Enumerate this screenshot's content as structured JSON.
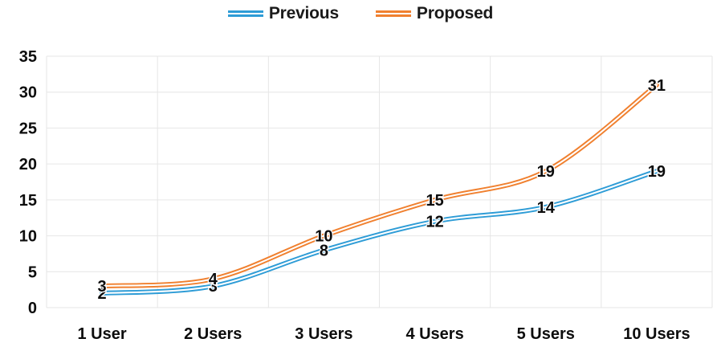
{
  "chart_data": {
    "type": "line",
    "title": "",
    "xlabel": "",
    "ylabel": "",
    "categories": [
      "1 User",
      "2 Users",
      "3 Users",
      "4 Users",
      "5 Users",
      "10 Users"
    ],
    "series": [
      {
        "name": "Previous",
        "color": "#2E9CD6",
        "values": [
          2,
          3,
          8,
          12,
          14,
          19
        ]
      },
      {
        "name": "Proposed",
        "color": "#F0802F",
        "values": [
          3,
          4,
          10,
          15,
          19,
          31
        ]
      }
    ],
    "ylim": [
      0,
      35
    ],
    "ytick_step": 5,
    "ytick_labels": [
      "0",
      "5",
      "10",
      "15",
      "20",
      "25",
      "30",
      "35"
    ],
    "grid": true,
    "gridline_color": "#E6E6E6",
    "legend_position": "top",
    "line_style": "double",
    "smooth": true,
    "data_labels_shown": true,
    "label_color": "#0d0d0d",
    "background_color": "#ffffff"
  }
}
